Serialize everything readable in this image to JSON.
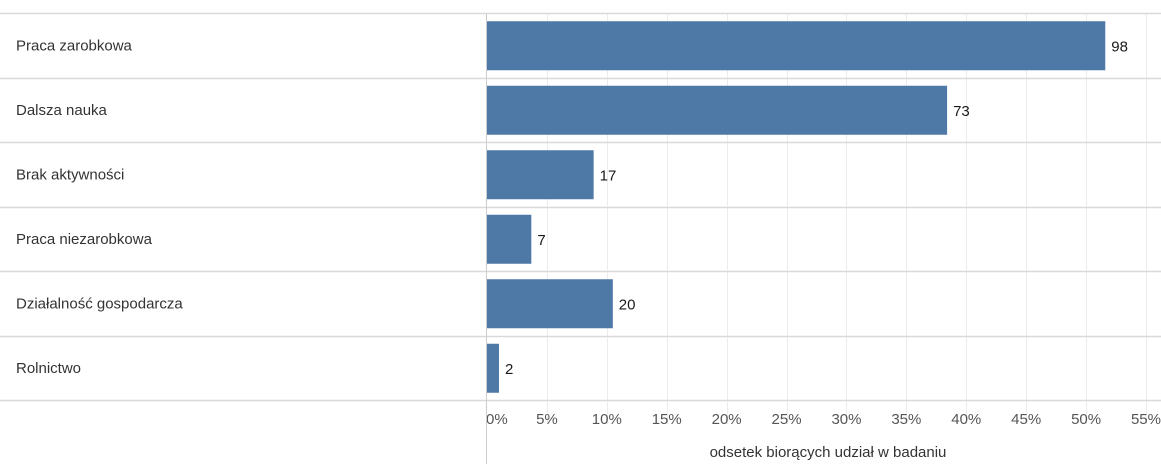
{
  "chart_data": {
    "type": "bar",
    "orientation": "horizontal",
    "categories": [
      "Praca zarobkowa",
      "Dalsza nauka",
      "Brak aktywności",
      "Praca niezarobkowa",
      "Działalność gospodarcza",
      "Rolnictwo"
    ],
    "values": [
      51.6,
      38.4,
      8.9,
      3.7,
      10.5,
      1.0
    ],
    "data_labels": [
      "98",
      "73",
      "17",
      "7",
      "20",
      "2"
    ],
    "xlabel": "odsetek biorących udział w badaniu",
    "ylabel": "",
    "xlim": [
      0,
      55
    ],
    "xticks": [
      0,
      5,
      10,
      15,
      20,
      25,
      30,
      35,
      40,
      45,
      50,
      55
    ],
    "xtick_labels": [
      "0%",
      "5%",
      "10%",
      "15%",
      "20%",
      "25%",
      "30%",
      "35%",
      "40%",
      "45%",
      "50%",
      "55%"
    ],
    "grid": true,
    "bar_color": "#4e79a7"
  }
}
